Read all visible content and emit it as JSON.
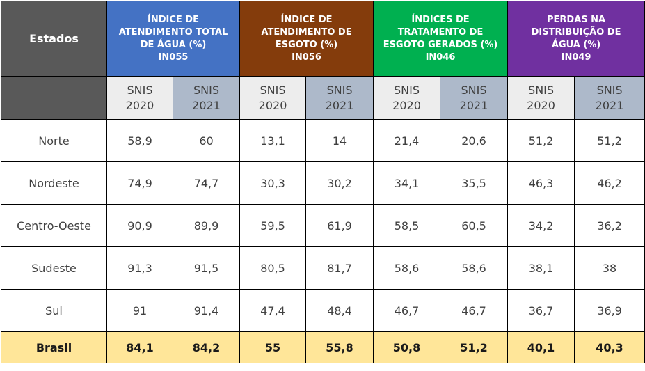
{
  "table": {
    "header_state": "Estados",
    "groups": [
      {
        "label": "ÍNDICE DE\nATENDIMENTO TOTAL\nDE ÁGUA (%)\nIN055",
        "color": "#4472c4"
      },
      {
        "label": "ÍNDICE DE\nATENDIMENTO  DE\nESGOTO (%)\nIN056",
        "color": "#843c0c"
      },
      {
        "label": "ÍNDICES DE\nTRATAMENTO DE\nESGOTO GERADOS (%)\nIN046",
        "color": "#00b050"
      },
      {
        "label": "PERDAS NA\nDISTRIBUIÇÃO DE\nÁGUA (%)\nIN049",
        "color": "#7030a0"
      }
    ],
    "sub_headers": [
      "SNIS\n2020",
      "SNIS\n2021"
    ],
    "rows": [
      {
        "state": "Norte",
        "values": [
          "58,9",
          "60",
          "13,1",
          "14",
          "21,4",
          "20,6",
          "51,2",
          "51,2"
        ]
      },
      {
        "state": "Nordeste",
        "values": [
          "74,9",
          "74,7",
          "30,3",
          "30,2",
          "34,1",
          "35,5",
          "46,3",
          "46,2"
        ]
      },
      {
        "state": "Centro-Oeste",
        "values": [
          "90,9",
          "89,9",
          "59,5",
          "61,9",
          "58,5",
          "60,5",
          "34,2",
          "36,2"
        ]
      },
      {
        "state": "Sudeste",
        "values": [
          "91,3",
          "91,5",
          "80,5",
          "81,7",
          "58,6",
          "58,6",
          "38,1",
          "38"
        ]
      },
      {
        "state": "Sul",
        "values": [
          "91",
          "91,4",
          "47,4",
          "48,4",
          "46,7",
          "46,7",
          "36,7",
          "36,9"
        ]
      }
    ],
    "total": {
      "state": "Brasil",
      "values": [
        "84,1",
        "84,2",
        "55",
        "55,8",
        "50,8",
        "51,2",
        "40,1",
        "40,3"
      ]
    },
    "colors": {
      "state_header": "#595959",
      "sub_2020": "#ededed",
      "sub_2021": "#adb9ca",
      "total_row": "#ffe699"
    }
  }
}
